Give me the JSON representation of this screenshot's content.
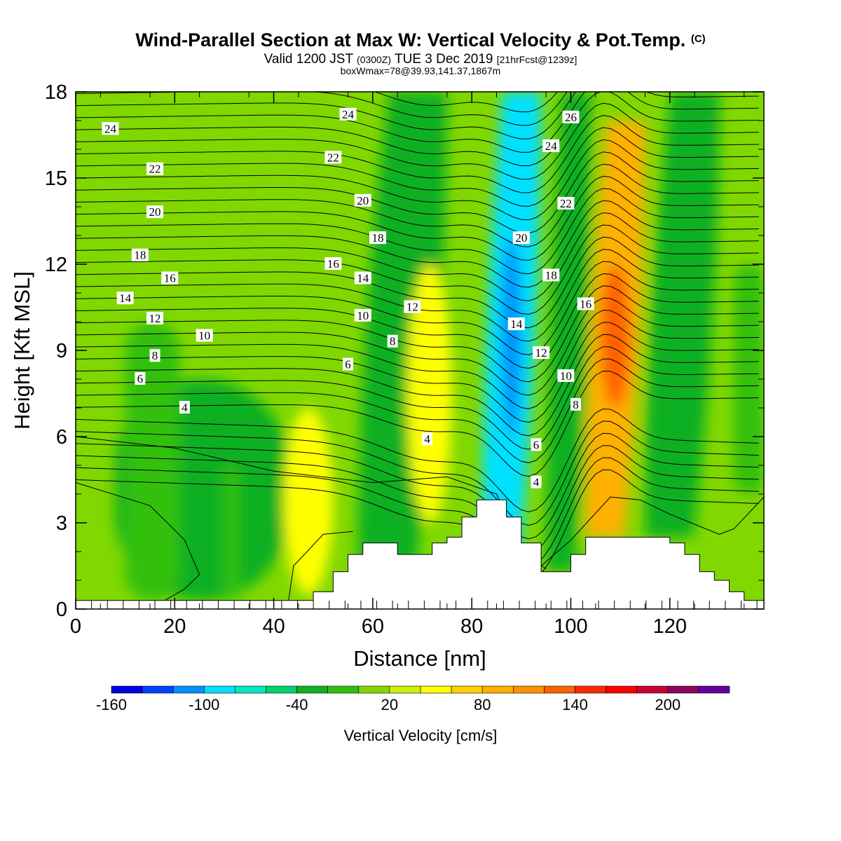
{
  "header": {
    "title": "Wind-Parallel Section at Max W: Vertical Velocity & Pot.Temp.",
    "title_mark": "(C)",
    "valid_pre": "Valid 1200 JST",
    "valid_z": "(0300Z)",
    "valid_date": "TUE 3 Dec 2019",
    "valid_fcst": "[21hrFcst@1239z]",
    "box_info": "boxWmax=78@39.93,141.37,1867m"
  },
  "chart_data": {
    "type": "heatmap",
    "xlabel": "Distance [nm]",
    "ylabel": "Height [Kft MSL]",
    "xlim": [
      0,
      139
    ],
    "ylim": [
      0,
      18
    ],
    "x_ticks": [
      "0",
      "20",
      "40",
      "60",
      "80",
      "100",
      "120"
    ],
    "y_ticks": [
      "0",
      "3",
      "6",
      "9",
      "12",
      "15",
      "18"
    ],
    "colorbar": {
      "title": "Vertical Velocity [cm/s]",
      "labels": [
        "-160",
        "-100",
        "-40",
        "20",
        "80",
        "140",
        "200"
      ],
      "colors": [
        "#0000e6",
        "#0040ff",
        "#0090ff",
        "#00e0ff",
        "#00e8c0",
        "#00d070",
        "#10b020",
        "#30c010",
        "#80d800",
        "#d0f000",
        "#ffff00",
        "#ffd000",
        "#ffb000",
        "#ff9000",
        "#ff6000",
        "#ff2800",
        "#ff0000",
        "#c80030",
        "#900060",
        "#6000a0"
      ]
    },
    "terrain": [
      [
        0,
        0.3
      ],
      [
        48,
        0.3
      ],
      [
        48,
        0.6
      ],
      [
        52,
        0.6
      ],
      [
        52,
        1.3
      ],
      [
        55,
        1.3
      ],
      [
        55,
        1.9
      ],
      [
        58,
        1.9
      ],
      [
        58,
        2.3
      ],
      [
        65,
        2.3
      ],
      [
        65,
        1.9
      ],
      [
        72,
        1.9
      ],
      [
        72,
        2.3
      ],
      [
        75,
        2.3
      ],
      [
        75,
        2.5
      ],
      [
        78,
        2.5
      ],
      [
        78,
        3.2
      ],
      [
        81,
        3.2
      ],
      [
        81,
        3.8
      ],
      [
        87,
        3.8
      ],
      [
        87,
        3.2
      ],
      [
        90,
        3.2
      ],
      [
        90,
        2.3
      ],
      [
        94,
        2.3
      ],
      [
        94,
        1.3
      ],
      [
        100,
        1.3
      ],
      [
        100,
        1.9
      ],
      [
        103,
        1.9
      ],
      [
        103,
        2.5
      ],
      [
        120,
        2.5
      ],
      [
        120,
        2.3
      ],
      [
        123,
        2.3
      ],
      [
        123,
        1.9
      ],
      [
        126,
        1.9
      ],
      [
        126,
        1.3
      ],
      [
        129,
        1.3
      ],
      [
        129,
        1.0
      ],
      [
        132,
        1.0
      ],
      [
        132,
        0.6
      ],
      [
        135,
        0.6
      ],
      [
        135,
        0.3
      ],
      [
        139,
        0.3
      ]
    ],
    "w_field": [
      {
        "x": [
          8,
          43
        ],
        "y": [
          0.3,
          8
        ],
        "w": -60,
        "shape": "band"
      },
      {
        "x": [
          10,
          21
        ],
        "y": [
          0.3,
          10
        ],
        "w": -40,
        "shape": "band"
      },
      {
        "x": [
          30,
          33
        ],
        "y": [
          0.3,
          5
        ],
        "w": -40,
        "shape": "band"
      },
      {
        "x": [
          42,
          52
        ],
        "y": [
          0.5,
          7
        ],
        "w": 20,
        "shape": "blob"
      },
      {
        "x": [
          57,
          75
        ],
        "y": [
          1.5,
          18
        ],
        "w": -60,
        "shape": "tilt"
      },
      {
        "x": [
          67,
          76
        ],
        "y": [
          3,
          12
        ],
        "w": 20,
        "shape": "blob"
      },
      {
        "x": [
          82,
          94
        ],
        "y": [
          2,
          18
        ],
        "w": -120,
        "shape": "tilt"
      },
      {
        "x": [
          86,
          90
        ],
        "y": [
          6,
          13
        ],
        "w": -150,
        "shape": "core"
      },
      {
        "x": [
          95,
          104
        ],
        "y": [
          1.3,
          18
        ],
        "w": -60,
        "shape": "tilt"
      },
      {
        "x": [
          103,
          115
        ],
        "y": [
          2.5,
          17
        ],
        "w": 60,
        "shape": "tilt"
      },
      {
        "x": [
          106,
          112
        ],
        "y": [
          7,
          12
        ],
        "w": 90,
        "shape": "core"
      },
      {
        "x": [
          115,
          130
        ],
        "y": [
          2.5,
          18
        ],
        "w": -60,
        "shape": "tilt"
      },
      {
        "x": [
          133,
          139
        ],
        "y": [
          4,
          12
        ],
        "w": -40,
        "shape": "band"
      }
    ],
    "theta_contours": [
      "4",
      "6",
      "8",
      "10",
      "12",
      "14",
      "16",
      "18",
      "20",
      "22",
      "24",
      "26"
    ],
    "contour_labels": [
      {
        "text": "24",
        "x": 7,
        "y": 16.7
      },
      {
        "text": "22",
        "x": 16,
        "y": 15.3
      },
      {
        "text": "20",
        "x": 16,
        "y": 13.8
      },
      {
        "text": "18",
        "x": 13,
        "y": 12.3
      },
      {
        "text": "16",
        "x": 19,
        "y": 11.5
      },
      {
        "text": "14",
        "x": 10,
        "y": 10.8
      },
      {
        "text": "12",
        "x": 16,
        "y": 10.1
      },
      {
        "text": "10",
        "x": 26,
        "y": 9.5
      },
      {
        "text": "8",
        "x": 16,
        "y": 8.8
      },
      {
        "text": "6",
        "x": 13,
        "y": 8.0
      },
      {
        "text": "4",
        "x": 22,
        "y": 7.0
      },
      {
        "text": "24",
        "x": 55,
        "y": 17.2
      },
      {
        "text": "22",
        "x": 52,
        "y": 15.7
      },
      {
        "text": "20",
        "x": 58,
        "y": 14.2
      },
      {
        "text": "18",
        "x": 61,
        "y": 12.9
      },
      {
        "text": "16",
        "x": 52,
        "y": 12.0
      },
      {
        "text": "14",
        "x": 58,
        "y": 11.5
      },
      {
        "text": "12",
        "x": 68,
        "y": 10.5
      },
      {
        "text": "10",
        "x": 58,
        "y": 10.2
      },
      {
        "text": "8",
        "x": 64,
        "y": 9.3
      },
      {
        "text": "6",
        "x": 55,
        "y": 8.5
      },
      {
        "text": "4",
        "x": 71,
        "y": 5.9
      },
      {
        "text": "26",
        "x": 100,
        "y": 17.1
      },
      {
        "text": "24",
        "x": 96,
        "y": 16.1
      },
      {
        "text": "22",
        "x": 99,
        "y": 14.1
      },
      {
        "text": "20",
        "x": 90,
        "y": 12.9
      },
      {
        "text": "18",
        "x": 96,
        "y": 11.6
      },
      {
        "text": "16",
        "x": 103,
        "y": 10.6
      },
      {
        "text": "14",
        "x": 89,
        "y": 9.9
      },
      {
        "text": "12",
        "x": 94,
        "y": 8.9
      },
      {
        "text": "10",
        "x": 99,
        "y": 8.1
      },
      {
        "text": "8",
        "x": 101,
        "y": 7.1
      },
      {
        "text": "6",
        "x": 93,
        "y": 5.7
      },
      {
        "text": "4",
        "x": 93,
        "y": 4.4
      }
    ]
  }
}
